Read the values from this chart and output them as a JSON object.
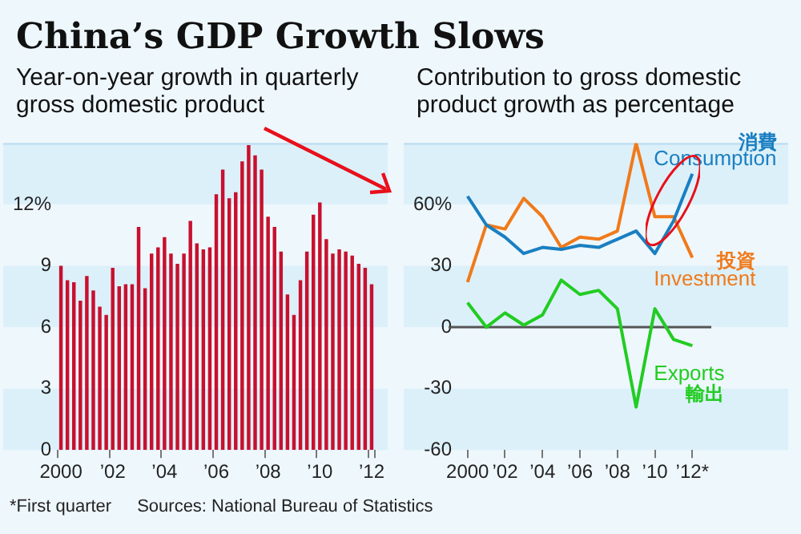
{
  "chart_data": [
    {
      "type": "bar",
      "title": "China’s GDP Growth Slows",
      "subtitle": "Year-on-year growth in quarterly gross domestic product",
      "categories": [
        "2000",
        null,
        null,
        null,
        null,
        null,
        null,
        null,
        "’02",
        null,
        null,
        null,
        null,
        null,
        null,
        null,
        "’04",
        null,
        null,
        null,
        null,
        null,
        null,
        null,
        "’06",
        null,
        null,
        null,
        null,
        null,
        null,
        null,
        "’08",
        null,
        null,
        null,
        null,
        null,
        null,
        null,
        "’10",
        null,
        null,
        null,
        null,
        null,
        null,
        null,
        "’12"
      ],
      "values": [
        9.0,
        8.3,
        8.2,
        7.3,
        8.5,
        7.8,
        7.0,
        6.6,
        8.9,
        8.0,
        8.1,
        8.1,
        10.9,
        7.9,
        9.6,
        9.9,
        10.4,
        9.6,
        9.1,
        9.6,
        11.2,
        10.1,
        9.8,
        9.9,
        12.5,
        13.7,
        12.3,
        12.6,
        14.1,
        14.9,
        14.4,
        13.7,
        11.4,
        10.9,
        9.7,
        7.6,
        6.6,
        8.3,
        9.7,
        11.5,
        12.1,
        10.3,
        9.6,
        9.8,
        9.7,
        9.5,
        9.1,
        8.9,
        8.1
      ],
      "color": "#c8102e",
      "ylim": [
        0,
        15
      ],
      "yticks": [
        0,
        3,
        6,
        9,
        {
          "value": 12,
          "label": "12%"
        }
      ],
      "bands": [
        {
          "axis": "y",
          "from": 0,
          "to": 3,
          "color": "#dcf0fa"
        },
        {
          "axis": "y",
          "from": 6,
          "to": 9,
          "color": "#dcf0fa"
        },
        {
          "axis": "y",
          "from": 12,
          "to": 15,
          "color": "#dcf0fa"
        }
      ],
      "annotations": [
        "*First quarter",
        "Sources: National Bureau of Statistics"
      ]
    },
    {
      "type": "line",
      "subtitle": "Contribution to gross domestic product growth as percentage",
      "categories": [
        "2000",
        null,
        "’02",
        null,
        "’04",
        null,
        "’06",
        null,
        "’08",
        null,
        "’10",
        null,
        "’12*"
      ],
      "series": [
        {
          "name": "Consumption",
          "color": "#1a7fc1",
          "values": [
            64,
            50,
            44,
            36,
            39,
            38,
            40,
            39,
            43,
            47,
            36,
            52,
            75
          ]
        },
        {
          "name": "Investment",
          "color": "#f07a1a",
          "values": [
            22,
            50,
            48,
            63,
            54,
            39,
            44,
            43,
            47,
            90,
            54,
            54,
            34
          ]
        },
        {
          "name": "Exports",
          "color": "#22cc22",
          "values": [
            12,
            0,
            7,
            1,
            6,
            23,
            16,
            18,
            9,
            -39,
            9,
            -6,
            -9
          ]
        }
      ],
      "ylim": [
        -60,
        90
      ],
      "yticks": [
        -60,
        -30,
        0,
        30,
        {
          "value": 60,
          "label": "60%"
        }
      ],
      "marker": "none",
      "bands": [
        {
          "axis": "y",
          "from": -60,
          "to": -30,
          "color": "#dcf0fa"
        },
        {
          "axis": "y",
          "from": 0,
          "to": 30,
          "color": "#dcf0fa"
        },
        {
          "axis": "y",
          "from": 60,
          "to": 90,
          "color": "#dcf0fa"
        }
      ],
      "ref_lines": [
        {
          "axis": "y",
          "value": 0,
          "color": "#555555"
        }
      ],
      "annotations": [
        {
          "text": "消費",
          "x": "’12*",
          "y": 90
        },
        {
          "text": "投資",
          "x": "’12*",
          "y": 32
        },
        {
          "text": "輸出",
          "x": "’12*",
          "y": -33
        }
      ]
    }
  ]
}
